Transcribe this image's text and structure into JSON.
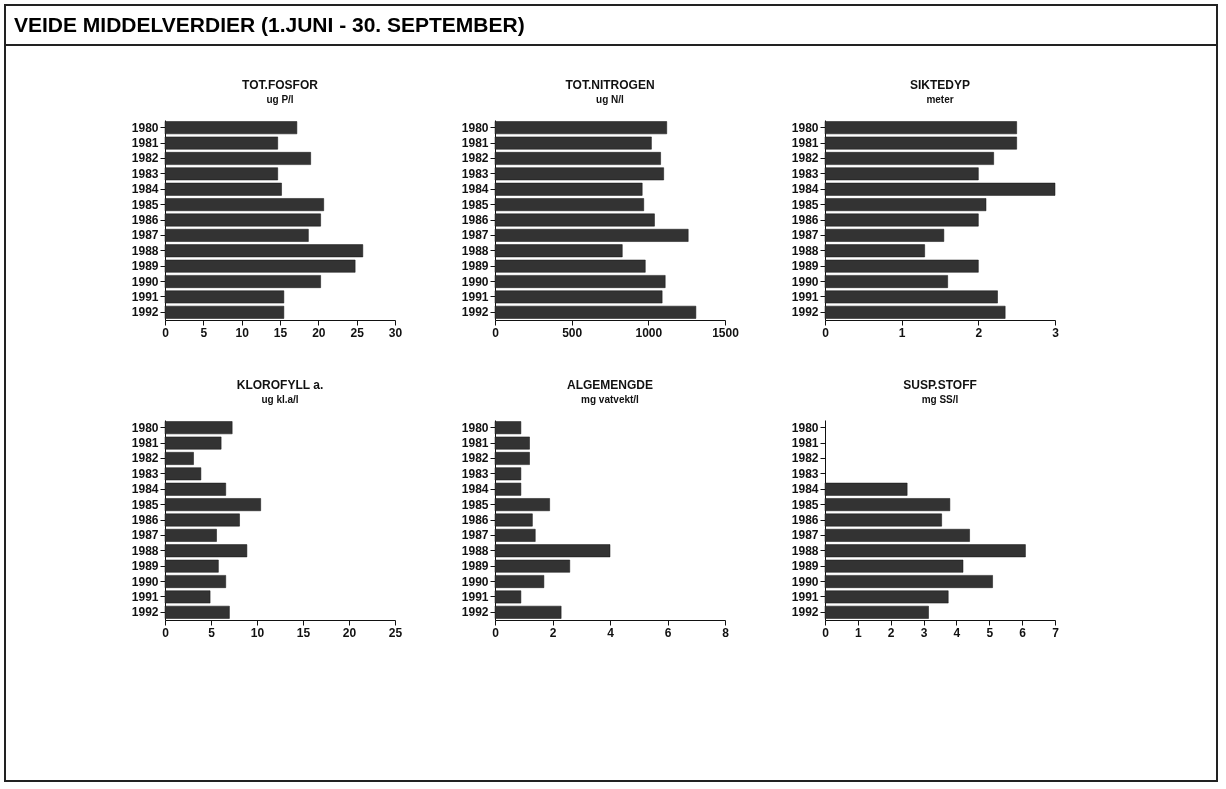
{
  "chart_data": [
    {
      "type": "bar",
      "orientation": "horizontal",
      "title": "TOT.FOSFOR",
      "subtitle": "ug P/l",
      "annotations": [
        "VEIDE MIDDELVERDIER (1.JUNI - 30. SEPTEMBER)"
      ],
      "categories": [
        "1980",
        "1981",
        "1982",
        "1983",
        "1984",
        "1985",
        "1986",
        "1987",
        "1988",
        "1989",
        "1990",
        "1991",
        "1992"
      ],
      "values": [
        17.2,
        14.7,
        19.0,
        14.7,
        15.2,
        20.7,
        20.3,
        18.7,
        25.8,
        24.8,
        20.3,
        15.5,
        15.5
      ],
      "color": "#333333",
      "xlim": [
        0,
        30
      ],
      "xticks": [
        0,
        5,
        10,
        15,
        20,
        25,
        30
      ]
    },
    {
      "type": "bar",
      "orientation": "horizontal",
      "title": "TOT.NITROGEN",
      "subtitle": "ug N/l",
      "categories": [
        "1980",
        "1981",
        "1982",
        "1983",
        "1984",
        "1985",
        "1986",
        "1987",
        "1988",
        "1989",
        "1990",
        "1991",
        "1992"
      ],
      "values": [
        1120,
        1020,
        1080,
        1100,
        960,
        970,
        1040,
        1260,
        830,
        980,
        1110,
        1090,
        1310
      ],
      "color": "#333333",
      "xlim": [
        0,
        1500
      ],
      "xticks": [
        0,
        500,
        1000,
        1500
      ]
    },
    {
      "type": "bar",
      "orientation": "horizontal",
      "title": "SIKTEDYP",
      "subtitle": "meter",
      "categories": [
        "1980",
        "1981",
        "1982",
        "1983",
        "1984",
        "1985",
        "1986",
        "1987",
        "1988",
        "1989",
        "1990",
        "1991",
        "1992"
      ],
      "values": [
        2.5,
        2.5,
        2.2,
        2.0,
        3.0,
        2.1,
        2.0,
        1.55,
        1.3,
        2.0,
        1.6,
        2.25,
        2.35
      ],
      "color": "#333333",
      "xlim": [
        0,
        3
      ],
      "xticks": [
        0,
        1,
        2,
        3
      ]
    },
    {
      "type": "bar",
      "orientation": "horizontal",
      "title": "KLOROFYLL a.",
      "subtitle": "ug kl.a/l",
      "categories": [
        "1980",
        "1981",
        "1982",
        "1983",
        "1984",
        "1985",
        "1986",
        "1987",
        "1988",
        "1989",
        "1990",
        "1991",
        "1992"
      ],
      "values": [
        7.3,
        6.1,
        3.1,
        3.9,
        6.6,
        10.4,
        8.1,
        5.6,
        8.9,
        5.8,
        6.6,
        4.9,
        7.0
      ],
      "color": "#333333",
      "xlim": [
        0,
        25
      ],
      "xticks": [
        0,
        5,
        10,
        15,
        20,
        25
      ]
    },
    {
      "type": "bar",
      "orientation": "horizontal",
      "title": "ALGEMENGDE",
      "subtitle": "mg vatvekt/l",
      "categories": [
        "1980",
        "1981",
        "1982",
        "1983",
        "1984",
        "1985",
        "1986",
        "1987",
        "1988",
        "1989",
        "1990",
        "1991",
        "1992"
      ],
      "values": [
        0.9,
        1.2,
        1.2,
        0.9,
        0.9,
        1.9,
        1.3,
        1.4,
        4.0,
        2.6,
        1.7,
        0.9,
        2.3
      ],
      "color": "#333333",
      "xlim": [
        0,
        8
      ],
      "xticks": [
        0,
        2,
        4,
        6,
        8
      ]
    },
    {
      "type": "bar",
      "orientation": "horizontal",
      "title": "SUSP.STOFF",
      "subtitle": "mg SS/l",
      "categories": [
        "1980",
        "1981",
        "1982",
        "1983",
        "1984",
        "1985",
        "1986",
        "1987",
        "1988",
        "1989",
        "1990",
        "1991",
        "1992"
      ],
      "values": [
        null,
        null,
        null,
        null,
        2.5,
        3.8,
        3.55,
        4.4,
        6.1,
        4.2,
        5.1,
        3.75,
        3.15
      ],
      "color": "#333333",
      "xlim": [
        0,
        7
      ],
      "xticks": [
        0,
        1,
        2,
        3,
        4,
        5,
        6,
        7
      ]
    }
  ]
}
